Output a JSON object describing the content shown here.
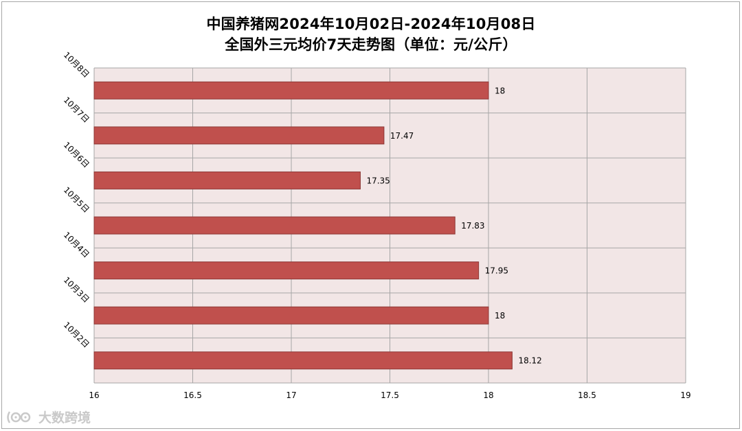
{
  "chart_data": {
    "type": "bar",
    "orientation": "horizontal",
    "title": "中国养猪网2024年10月02日-2024年10月08日",
    "subtitle": "全国外三元均价7天走势图（单位：元/公斤）",
    "categories": [
      "10月8日",
      "10月7日",
      "10月6日",
      "10月5日",
      "10月4日",
      "10月3日",
      "10月2日"
    ],
    "values": [
      18,
      17.47,
      17.35,
      17.83,
      17.95,
      18,
      18.12
    ],
    "value_labels": [
      "18",
      "17.47",
      "17.35",
      "17.83",
      "17.95",
      "18",
      "18.12"
    ],
    "xlim": [
      16,
      19
    ],
    "x_ticks": [
      16,
      16.5,
      17,
      17.5,
      18,
      18.5,
      19
    ],
    "x_tick_labels": [
      "16",
      "16.5",
      "17",
      "17.5",
      "18",
      "18.5",
      "19"
    ],
    "xlabel": "",
    "ylabel": "",
    "grid": true,
    "legend": "none",
    "colors": {
      "bar": "#c0504d",
      "bar_edge": "#8c3836",
      "plot_background": "#f2e6e6",
      "grid": "#a6a6a6",
      "text": "#000000"
    }
  },
  "watermark": {
    "logo_icon": "daoshu-logo-icon",
    "text": "大数跨境"
  }
}
